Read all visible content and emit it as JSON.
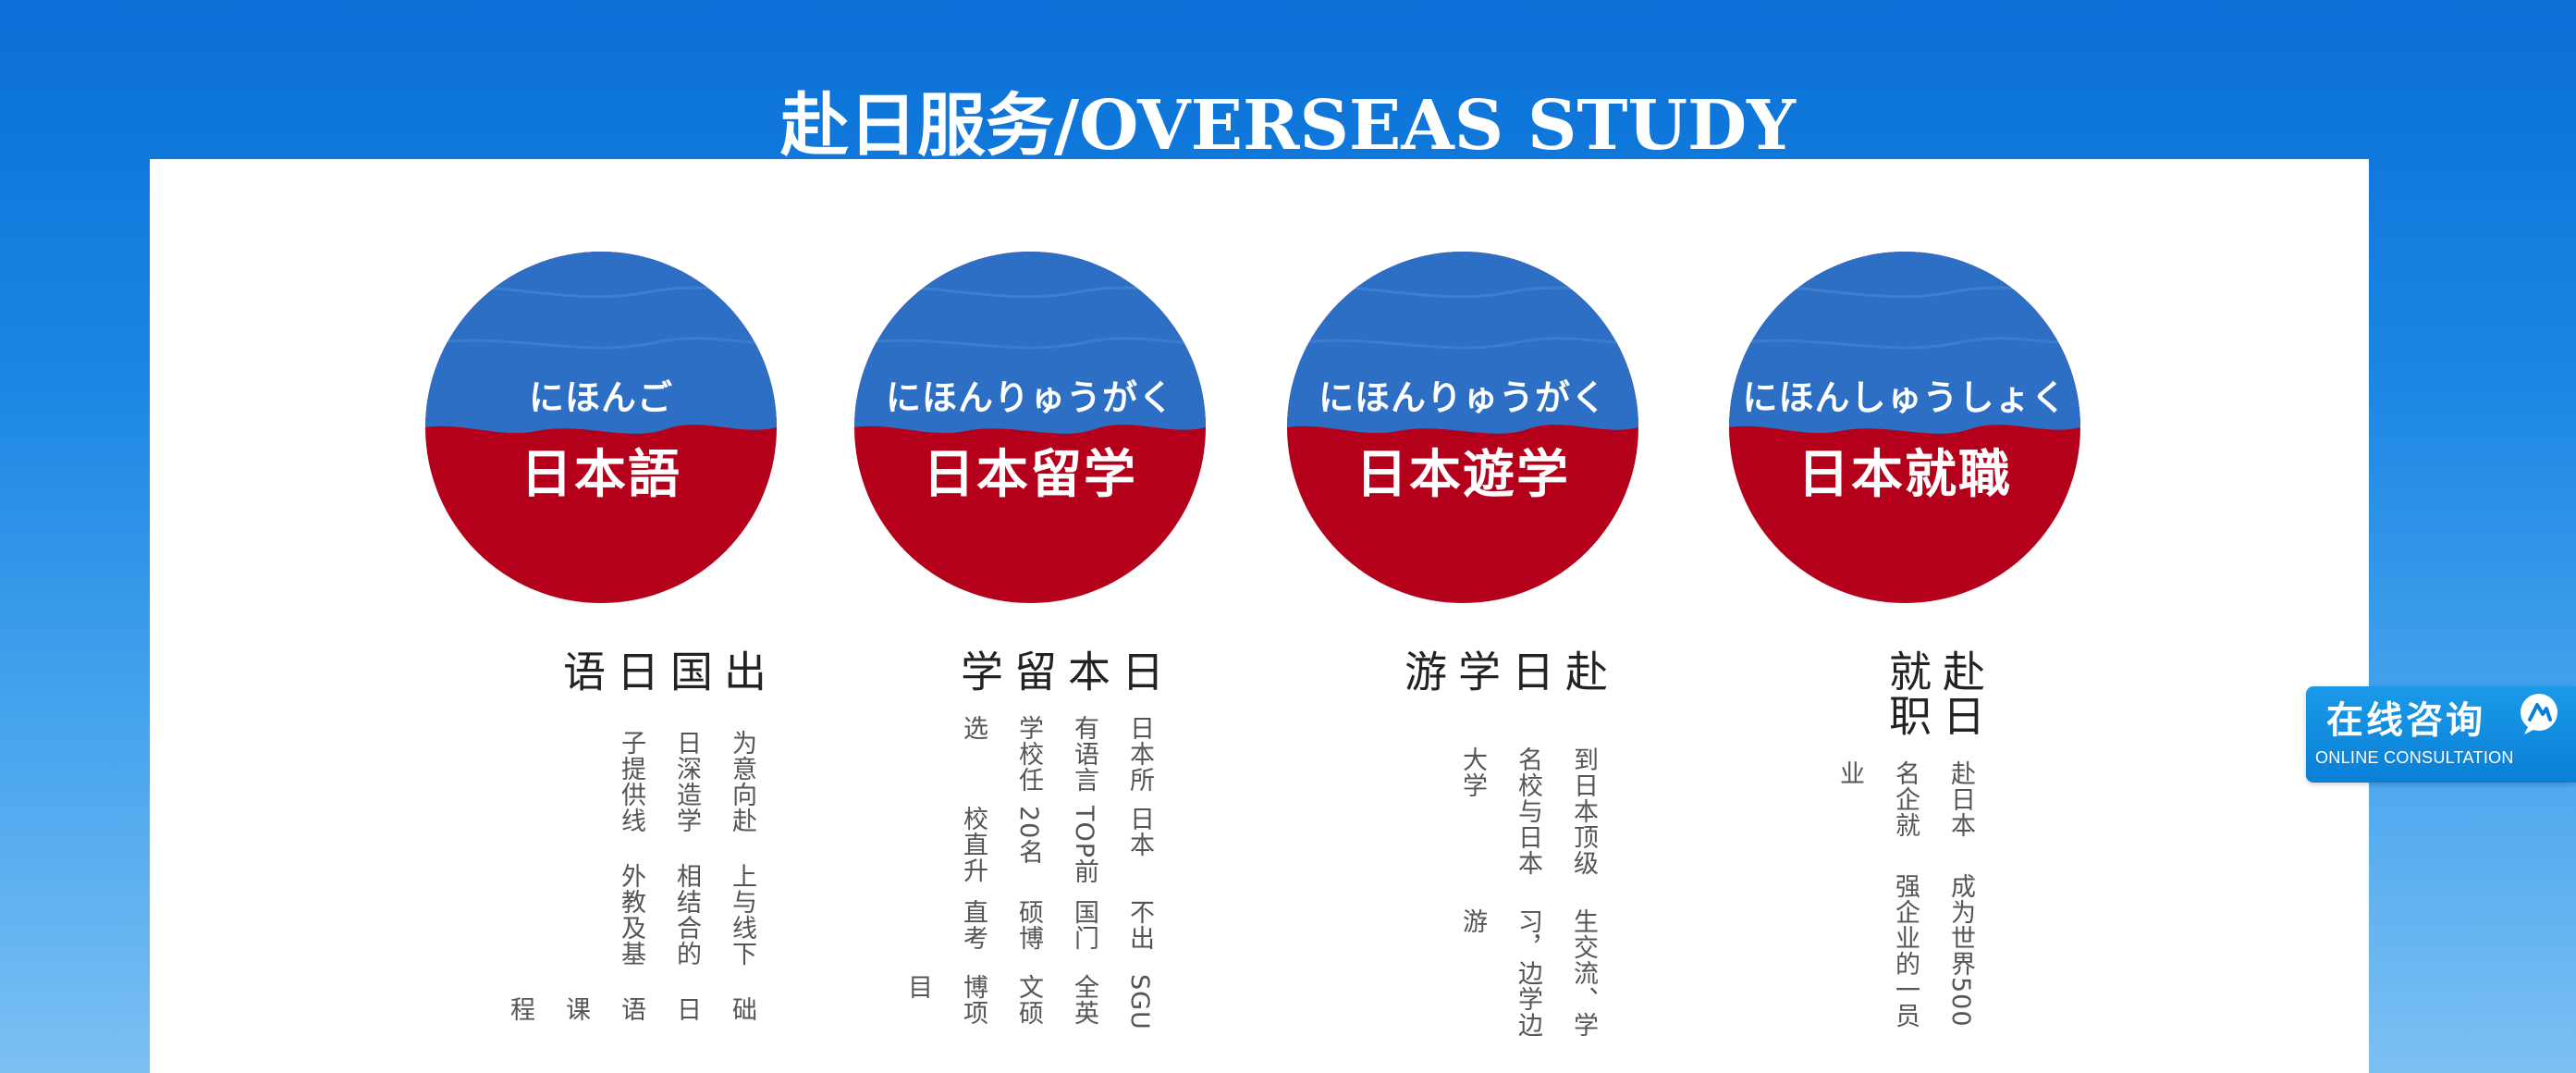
{
  "header": {
    "title": "赴日服务/OVERSEAS STUDY"
  },
  "services": [
    {
      "badge_kana": "にほんご",
      "badge_kanji": "日本語",
      "heading": "出国日语",
      "lines": [
        "为意向赴日深造学子提供线",
        "上与线下相结合的外教及基",
        "础日语课程"
      ]
    },
    {
      "badge_kana": "にほんりゅうがく",
      "badge_kanji": "日本留学",
      "heading": "日本留学",
      "lines": [
        "日本所有语言学校任选",
        "日本TOP前20名校直升",
        "不出国门硕博直考",
        "SGU全英文硕博项目"
      ]
    },
    {
      "badge_kana": "にほんりゅうがく",
      "badge_kanji": "日本遊学",
      "heading": "赴日学游",
      "lines": [
        "到日本顶级名校与日本大学",
        "生交流、学习，边学边游"
      ]
    },
    {
      "badge_kana": "にほんしゅうしょく",
      "badge_kanji": "日本就職",
      "heading": "赴日就职",
      "lines": [
        "赴日本名企就业",
        "成为世界500强企业的一员"
      ]
    }
  ],
  "consult_widget": {
    "label_cn": "在线咨询",
    "label_en": "ONLINE CONSULTATION",
    "icon": "chat-bubble-icon"
  },
  "colors": {
    "page_blue": "#0a6fd6",
    "badge_red": "#b5001b",
    "badge_blue": "#2c6fc4",
    "text_dark": "#222222",
    "text_gray": "#555555"
  }
}
